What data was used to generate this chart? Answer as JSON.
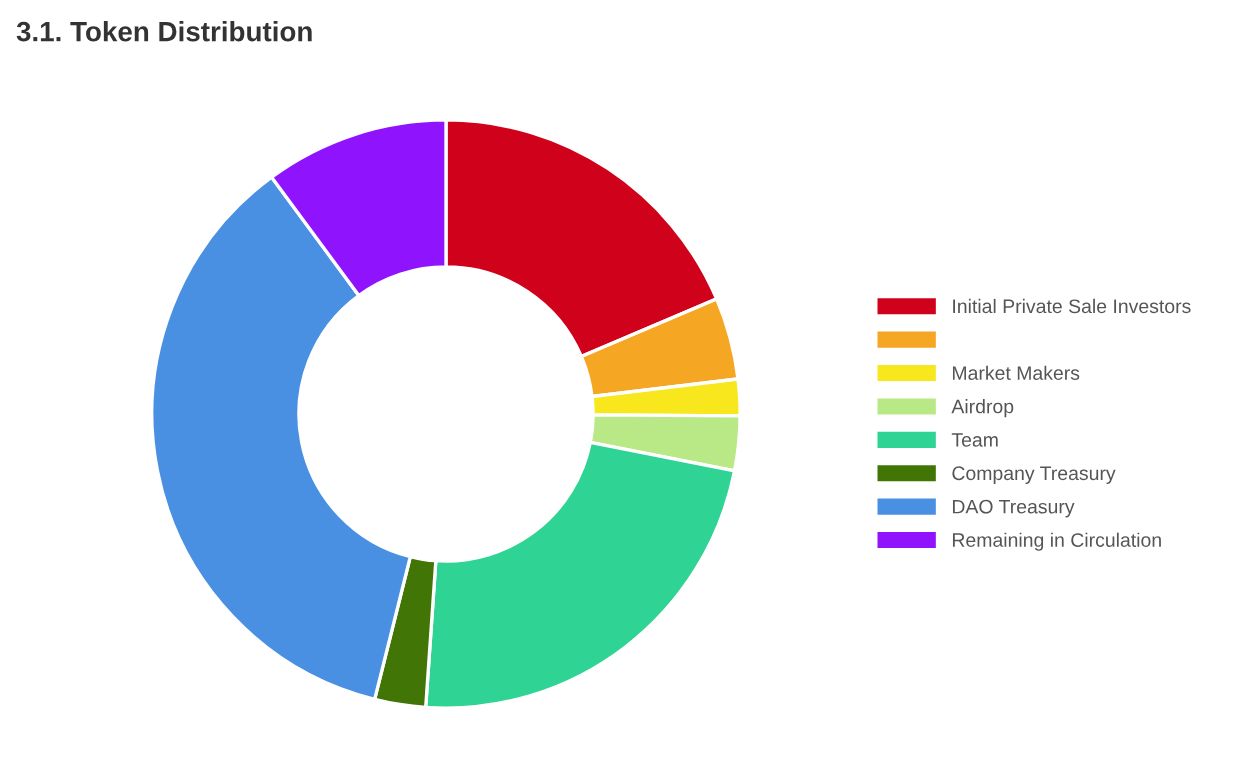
{
  "chart_data": {
    "type": "donut",
    "title": "3.1. Token Distribution",
    "categories": [
      "Initial Private Sale Investors",
      null,
      "Market Makers",
      "Airdrop",
      "Team",
      "Company Treasury",
      "DAO Treasury",
      "Remaining in Circulation"
    ],
    "values": [
      18.6,
      4.5,
      2,
      3,
      23,
      2.8,
      36,
      10.1
    ],
    "colors": [
      "#d0021b",
      "#f5a623",
      "#f8e71c",
      "#b8e986",
      "#2fd394",
      "#417505",
      "#4a90e2",
      "#9013fe"
    ],
    "legend": "right"
  }
}
